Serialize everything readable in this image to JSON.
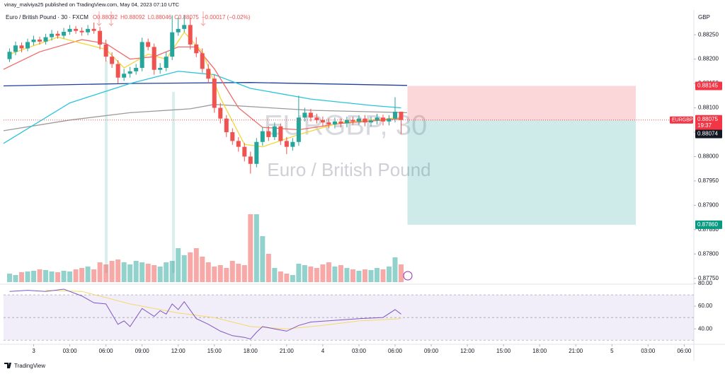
{
  "header": {
    "publisher": "vinay_malviya25 published on TradingView.com, May 04, 2023 07:10 UTC",
    "logo": "TradingView"
  },
  "chart_data": {
    "type": "candlestick",
    "title": "Euro / British Pound · 30 · FXCM",
    "legend_ohlc": [
      "O0.88092",
      "H0.88092",
      "L0.88046",
      "C0.88075",
      "−0.00017 (−0.02%)"
    ],
    "watermark": [
      "EURGBP, 30",
      "Euro / British Pound"
    ],
    "currency": "GBP",
    "up_color": "#26a69a",
    "down_color": "#ef5350",
    "x": [
      -2,
      -1.5,
      -1,
      -0.5,
      0,
      0.5,
      1,
      1.5,
      2,
      2.5,
      3,
      3.5,
      4,
      4.5,
      5,
      5.5,
      6,
      6.5,
      7,
      7.5,
      8,
      8.5,
      9,
      9.5,
      10,
      10.5,
      11,
      11.5,
      12,
      12.5,
      13,
      13.5,
      14,
      14.5,
      15,
      15.5,
      16,
      16.5,
      17,
      17.5,
      18,
      18.5,
      19,
      19.5,
      20,
      20.5,
      21,
      21.5,
      22,
      22.5,
      23,
      23.5,
      24,
      24.5,
      25,
      25.5,
      26,
      26.5,
      27,
      27.5,
      28,
      28.5,
      29,
      29.5,
      30,
      30.5
    ],
    "open": [
      0.882,
      0.88215,
      0.88228,
      0.88222,
      0.88235,
      0.8824,
      0.88236,
      0.88245,
      0.88252,
      0.88248,
      0.88256,
      0.88262,
      0.88258,
      0.88255,
      0.88262,
      0.88258,
      0.8823,
      0.88205,
      0.8819,
      0.88162,
      0.8817,
      0.88175,
      0.88182,
      0.88235,
      0.88225,
      0.88178,
      0.88182,
      0.88205,
      0.88255,
      0.88262,
      0.8827,
      0.8823,
      0.88212,
      0.8818,
      0.8816,
      0.881,
      0.88078,
      0.8805,
      0.88032,
      0.8802,
      0.88,
      0.87985,
      0.8803,
      0.88052,
      0.8804,
      0.88062,
      0.88032,
      0.8802,
      0.8803,
      0.8808,
      0.8809,
      0.8808,
      0.88075,
      0.8807,
      0.88066,
      0.88072,
      0.88068,
      0.88075,
      0.88072,
      0.88078,
      0.8807,
      0.88074,
      0.8808,
      0.88072,
      0.88078,
      0.88092
    ],
    "high": [
      0.88222,
      0.88236,
      0.88234,
      0.88242,
      0.88248,
      0.88246,
      0.88252,
      0.8826,
      0.88258,
      0.88264,
      0.8827,
      0.88268,
      0.88265,
      0.8827,
      0.88275,
      0.88266,
      0.8824,
      0.88214,
      0.88198,
      0.8818,
      0.88184,
      0.8819,
      0.88244,
      0.88242,
      0.88232,
      0.88192,
      0.88215,
      0.8829,
      0.88285,
      0.8829,
      0.88285,
      0.88245,
      0.88222,
      0.8819,
      0.88168,
      0.8811,
      0.88085,
      0.88058,
      0.8804,
      0.88028,
      0.8801,
      0.88038,
      0.8806,
      0.88062,
      0.8807,
      0.88068,
      0.8804,
      0.88038,
      0.88125,
      0.881,
      0.88098,
      0.88088,
      0.88082,
      0.88078,
      0.8808,
      0.88078,
      0.88082,
      0.88082,
      0.88085,
      0.88085,
      0.88082,
      0.88088,
      0.88086,
      0.88085,
      0.88122,
      0.88092
    ],
    "low": [
      0.88194,
      0.88208,
      0.88214,
      0.88216,
      0.88228,
      0.8823,
      0.8823,
      0.88238,
      0.88242,
      0.88242,
      0.8825,
      0.88252,
      0.88248,
      0.88249,
      0.88252,
      0.8822,
      0.88195,
      0.88182,
      0.8815,
      0.88155,
      0.88162,
      0.88168,
      0.88175,
      0.88218,
      0.88168,
      0.8817,
      0.88175,
      0.88198,
      0.88248,
      0.88255,
      0.8822,
      0.88204,
      0.88172,
      0.8815,
      0.8809,
      0.88068,
      0.8804,
      0.88024,
      0.8801,
      0.8799,
      0.87965,
      0.87978,
      0.88022,
      0.88032,
      0.88034,
      0.88024,
      0.88005,
      0.88012,
      0.88022,
      0.88072,
      0.88072,
      0.88068,
      0.88062,
      0.88058,
      0.88058,
      0.8806,
      0.8806,
      0.88065,
      0.88065,
      0.88062,
      0.88062,
      0.88066,
      0.88064,
      0.88064,
      0.8807,
      0.88046
    ],
    "close": [
      0.88215,
      0.88228,
      0.88222,
      0.88235,
      0.8824,
      0.88236,
      0.88245,
      0.88252,
      0.88248,
      0.88256,
      0.88262,
      0.88258,
      0.88255,
      0.88262,
      0.88258,
      0.8823,
      0.88205,
      0.8819,
      0.88162,
      0.8817,
      0.88175,
      0.88182,
      0.88235,
      0.88225,
      0.88178,
      0.88182,
      0.88205,
      0.88255,
      0.88262,
      0.8827,
      0.8823,
      0.88212,
      0.8818,
      0.8816,
      0.881,
      0.88078,
      0.8805,
      0.88032,
      0.8802,
      0.88,
      0.87985,
      0.8803,
      0.88052,
      0.8804,
      0.88062,
      0.88032,
      0.8802,
      0.8803,
      0.8808,
      0.8809,
      0.8808,
      0.88075,
      0.8807,
      0.88066,
      0.88072,
      0.88068,
      0.88075,
      0.88072,
      0.88078,
      0.8807,
      0.88074,
      0.8808,
      0.88072,
      0.88078,
      0.88092,
      0.88075
    ],
    "volume": [
      12,
      10,
      14,
      15,
      16,
      18,
      17,
      15,
      14,
      16,
      15,
      18,
      20,
      22,
      18,
      28,
      25,
      30,
      32,
      28,
      25,
      30,
      28,
      26,
      24,
      22,
      28,
      30,
      48,
      38,
      42,
      48,
      36,
      28,
      22,
      24,
      20,
      30,
      26,
      24,
      96,
      96,
      65,
      40,
      20,
      15,
      12,
      10,
      26,
      24,
      22,
      20,
      25,
      28,
      22,
      24,
      20,
      18,
      16,
      18,
      17,
      20,
      18,
      22,
      35,
      25
    ],
    "vlim": [
      0,
      100
    ],
    "xlim": [
      -2.5,
      54.8
    ],
    "xticks": [
      {
        "value": 0,
        "label": "3"
      },
      {
        "value": 3,
        "label": "03:00"
      },
      {
        "value": 6,
        "label": "06:00"
      },
      {
        "value": 9,
        "label": "09:00"
      },
      {
        "value": 12,
        "label": "12:00"
      },
      {
        "value": 15,
        "label": "15:00"
      },
      {
        "value": 18,
        "label": "18:00"
      },
      {
        "value": 21,
        "label": "21:00"
      },
      {
        "value": 24,
        "label": "4"
      },
      {
        "value": 27,
        "label": "03:00"
      },
      {
        "value": 30,
        "label": "06:00"
      },
      {
        "value": 33,
        "label": "09:00"
      },
      {
        "value": 36,
        "label": "12:00"
      },
      {
        "value": 39,
        "label": "15:00"
      },
      {
        "value": 42,
        "label": "18:00"
      },
      {
        "value": 45,
        "label": "21:00"
      },
      {
        "value": 48,
        "label": "5"
      },
      {
        "value": 51,
        "label": "03:00"
      },
      {
        "value": 54,
        "label": "06:00"
      }
    ],
    "ylim": [
      0.87738,
      0.88301
    ],
    "yticks": [
      {
        "value": 0.8825,
        "label": "0.88250"
      },
      {
        "value": 0.882,
        "label": "0.88200"
      },
      {
        "value": 0.8815,
        "label": "0.88150"
      },
      {
        "value": 0.881,
        "label": "0.88100"
      },
      {
        "value": 0.8805,
        "label": "0.88050"
      },
      {
        "value": 0.88,
        "label": "0.88000"
      },
      {
        "value": 0.8795,
        "label": "0.87950"
      },
      {
        "value": 0.879,
        "label": "0.87900"
      },
      {
        "value": 0.8785,
        "label": "0.87850"
      },
      {
        "value": 0.878,
        "label": "0.87800"
      },
      {
        "value": 0.8775,
        "label": "0.87750"
      }
    ],
    "lines": [
      {
        "color": "#1e3f9e",
        "x": [
          -2.5,
          8,
          18,
          31
        ],
        "values": [
          0.88145,
          0.8815,
          0.88152,
          0.88146
        ]
      },
      {
        "color": "#9e9a9a",
        "x": [
          -2.5,
          3,
          8,
          13,
          15,
          23,
          31
        ],
        "values": [
          0.88053,
          0.88075,
          0.8809,
          0.88098,
          0.88107,
          0.88095,
          0.8809
        ]
      },
      {
        "color": "#26c6da",
        "x": [
          -2.5,
          3,
          8,
          12,
          15,
          18,
          23,
          28,
          30.5
        ],
        "values": [
          0.88027,
          0.8811,
          0.8815,
          0.88175,
          0.88168,
          0.8814,
          0.88118,
          0.88105,
          0.881
        ]
      },
      {
        "color": "#f06a6a",
        "x": [
          -2.5,
          0.5,
          4,
          6,
          8,
          10,
          12,
          13.5,
          15,
          17,
          19,
          22,
          25.5,
          30.5
        ],
        "values": [
          0.88179,
          0.88215,
          0.8824,
          0.88232,
          0.882,
          0.88205,
          0.88225,
          0.88225,
          0.8818,
          0.881,
          0.8806,
          0.88055,
          0.88068,
          0.88078
        ]
      },
      {
        "color": "#f5d73a",
        "x": [
          -2,
          2,
          6,
          7.5,
          9.5,
          11,
          12.5,
          14,
          15.5,
          17.5,
          19,
          22,
          25.5,
          30.5
        ],
        "values": [
          0.8821,
          0.88245,
          0.8822,
          0.88182,
          0.8821,
          0.882,
          0.88255,
          0.88215,
          0.8812,
          0.88025,
          0.8802,
          0.88045,
          0.8807,
          0.8808
        ]
      }
    ],
    "last_price": {
      "symbol": "EURGBP",
      "value": 0.88075,
      "countdown": "19:37"
    },
    "position": {
      "stop": 0.88145,
      "entry": 0.88074,
      "target": {
        "value": 0.8786,
        "label": "0.87860"
      }
    },
    "rsi": {
      "color": "#7e57c2",
      "x": [
        -2,
        -0.5,
        1,
        2.5,
        4,
        5,
        6,
        7,
        7.5,
        8,
        9,
        10,
        10.5,
        11,
        11.5,
        12,
        12.5,
        13.5,
        14.5,
        15.5,
        16.5,
        17.5,
        18,
        18.5,
        19,
        20,
        21,
        22,
        23,
        25,
        27,
        29,
        30,
        30.5
      ],
      "values": [
        73,
        74,
        73,
        75,
        69,
        63,
        62,
        44,
        47,
        42,
        58,
        51,
        56,
        53,
        62,
        57,
        64,
        49,
        44,
        38,
        34,
        32.5,
        31,
        37,
        42,
        40,
        38,
        43,
        46,
        47.5,
        49,
        50,
        57,
        53
      ],
      "ma": {
        "color": "#f5d76e",
        "x": [
          1,
          4,
          8,
          12,
          15,
          18,
          21,
          24,
          27,
          30.5
        ],
        "values": [
          74,
          73,
          62,
          54,
          50,
          42,
          40,
          43,
          47,
          49
        ]
      },
      "ylim": [
        27,
        80
      ],
      "yticks": [
        {
          "value": 80,
          "label": "80.00"
        },
        {
          "value": 60,
          "label": "60.00"
        },
        {
          "value": 40,
          "label": "40.00"
        }
      ],
      "bands": [
        70,
        50,
        30
      ]
    }
  }
}
